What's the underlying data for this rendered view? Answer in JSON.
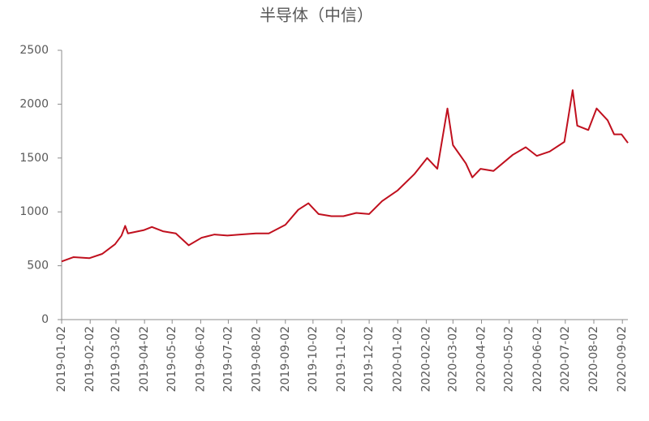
{
  "chart_data": {
    "type": "line",
    "title": "半导体（中信）",
    "x": [
      "2019-01-02",
      "2019-01-15",
      "2019-02-01",
      "2019-02-15",
      "2019-03-01",
      "2019-03-08",
      "2019-03-12",
      "2019-03-15",
      "2019-04-01",
      "2019-04-10",
      "2019-04-22",
      "2019-05-06",
      "2019-05-20",
      "2019-06-03",
      "2019-06-17",
      "2019-07-01",
      "2019-07-15",
      "2019-08-01",
      "2019-08-15",
      "2019-09-02",
      "2019-09-16",
      "2019-09-27",
      "2019-10-08",
      "2019-10-22",
      "2019-11-04",
      "2019-11-18",
      "2019-12-02",
      "2019-12-16",
      "2020-01-02",
      "2020-01-20",
      "2020-02-03",
      "2020-02-14",
      "2020-02-25",
      "2020-03-02",
      "2020-03-16",
      "2020-03-23",
      "2020-04-01",
      "2020-04-15",
      "2020-05-06",
      "2020-05-20",
      "2020-06-01",
      "2020-06-15",
      "2020-07-01",
      "2020-07-10",
      "2020-07-15",
      "2020-07-27",
      "2020-08-05",
      "2020-08-17",
      "2020-08-24",
      "2020-09-01",
      "2020-09-08"
    ],
    "series": [
      {
        "name": "半导体（中信）",
        "color": "#c0101e",
        "values": [
          540,
          580,
          570,
          610,
          700,
          780,
          870,
          800,
          830,
          860,
          820,
          800,
          690,
          760,
          790,
          780,
          790,
          800,
          800,
          880,
          1020,
          1080,
          980,
          960,
          960,
          990,
          980,
          1100,
          1200,
          1350,
          1500,
          1400,
          1960,
          1620,
          1450,
          1320,
          1400,
          1380,
          1530,
          1600,
          1520,
          1560,
          1650,
          2130,
          1800,
          1760,
          1960,
          1850,
          1720,
          1720,
          1640
        ]
      }
    ],
    "xlim": [
      "2019-01-02",
      "2020-09-08"
    ],
    "xticks": [
      "2019-01-02",
      "2019-02-02",
      "2019-03-02",
      "2019-04-02",
      "2019-05-02",
      "2019-06-02",
      "2019-07-02",
      "2019-08-02",
      "2019-09-02",
      "2019-10-02",
      "2019-11-02",
      "2019-12-02",
      "2020-01-02",
      "2020-02-02",
      "2020-03-02",
      "2020-04-02",
      "2020-05-02",
      "2020-06-02",
      "2020-07-02",
      "2020-08-02",
      "2020-09-02"
    ],
    "ylim": [
      0,
      2500
    ],
    "yticks": [
      0,
      500,
      1000,
      1500,
      2000,
      2500
    ],
    "grid": false
  }
}
